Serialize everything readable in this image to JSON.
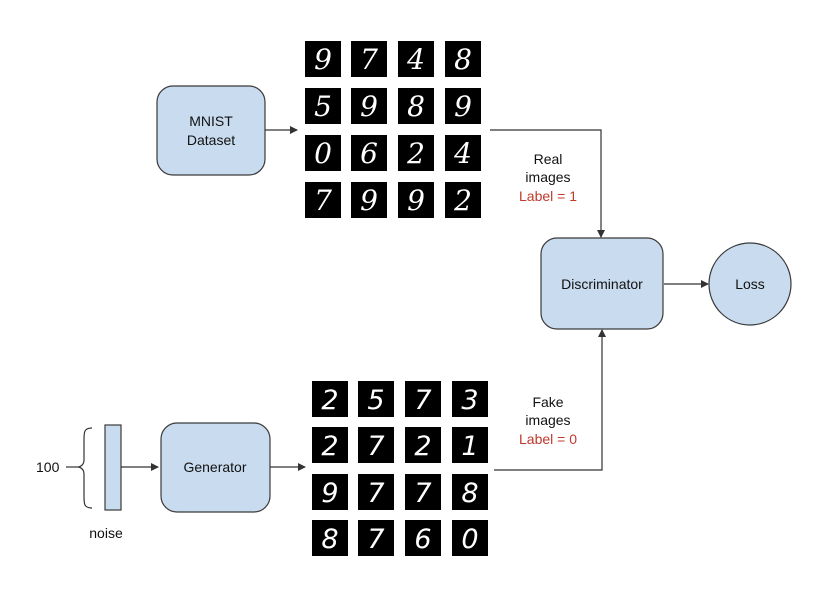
{
  "colors": {
    "box_fill": "#c9dcef",
    "box_stroke": "#3a3a3a",
    "label_accent": "#c0392b",
    "tile_bg": "#000000",
    "digit_color": "#ffffff"
  },
  "nodes": {
    "mnist": [
      "MNIST",
      "Dataset"
    ],
    "discriminator": "Discriminator",
    "loss": "Loss",
    "generator": "Generator"
  },
  "noise": {
    "dimension": "100",
    "label": "noise"
  },
  "real_path": {
    "lines": [
      "Real",
      "images"
    ],
    "label": "Label = 1"
  },
  "fake_path": {
    "lines": [
      "Fake",
      "images"
    ],
    "label": "Label = 0"
  },
  "real_digits": [
    [
      "9",
      "7",
      "4",
      "8"
    ],
    [
      "5",
      "9",
      "8",
      "9"
    ],
    [
      "0",
      "6",
      "2",
      "4"
    ],
    [
      "7",
      "9",
      "9",
      "2"
    ]
  ],
  "fake_digits": [
    [
      "2",
      "5",
      "7",
      "3"
    ],
    [
      "2",
      "7",
      "2",
      "1"
    ],
    [
      "9",
      "7",
      "7",
      "8"
    ],
    [
      "8",
      "7",
      "6",
      "0"
    ]
  ]
}
